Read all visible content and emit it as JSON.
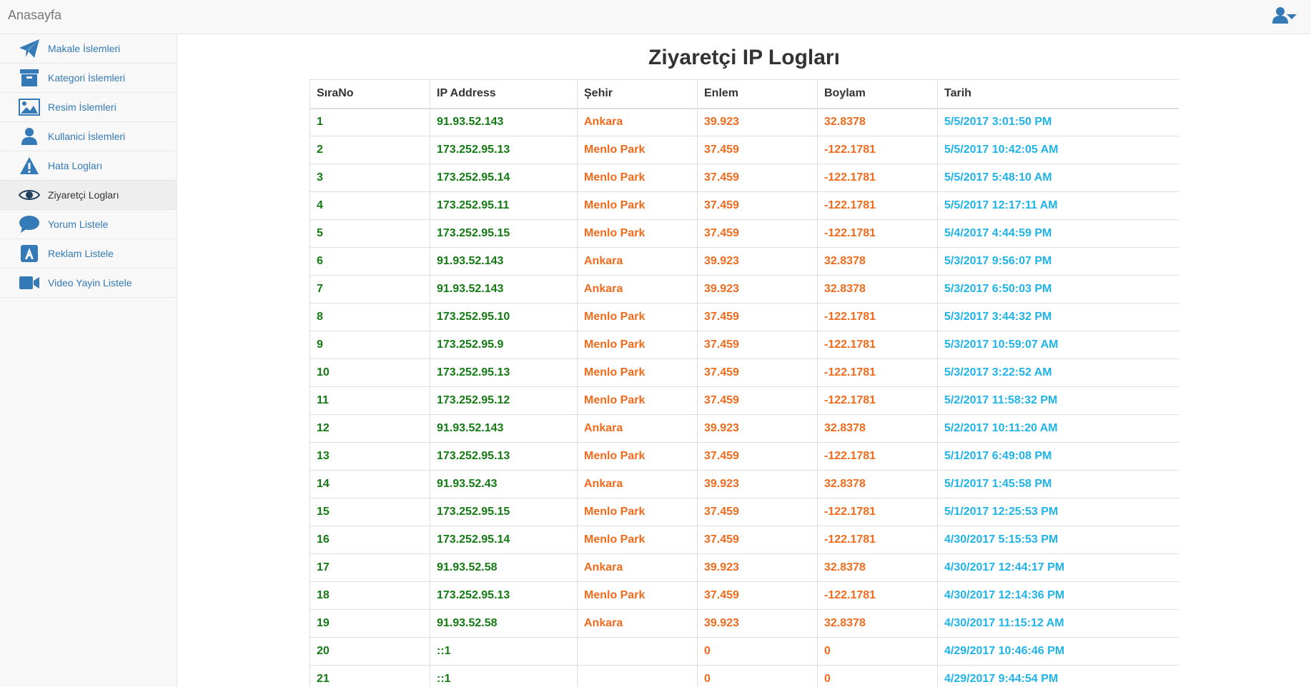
{
  "navbar": {
    "brand": "Anasayfa",
    "user_icon": "user-menu-icon"
  },
  "sidebar": {
    "items": [
      {
        "label": "Makale İslemleri",
        "icon": "paper-plane-icon",
        "active": false
      },
      {
        "label": "Kategori İslemleri",
        "icon": "archive-box-icon",
        "active": false
      },
      {
        "label": "Resim İslemleri",
        "icon": "picture-icon",
        "active": false
      },
      {
        "label": "Kullanici İslemleri",
        "icon": "user-icon",
        "active": false
      },
      {
        "label": "Hata Logları",
        "icon": "warning-icon",
        "active": false
      },
      {
        "label": "Ziyaretçi Logları",
        "icon": "eye-icon",
        "active": true
      },
      {
        "label": "Yorum Listele",
        "icon": "comment-icon",
        "active": false
      },
      {
        "label": "Reklam Listele",
        "icon": "ad-icon",
        "active": false
      },
      {
        "label": "Video Yayin Listele",
        "icon": "video-camera-icon",
        "active": false
      }
    ]
  },
  "page": {
    "title": "Ziyaretçi IP Logları"
  },
  "table": {
    "headers": [
      "SıraNo",
      "IP Address",
      "Şehir",
      "Enlem",
      "Boylam",
      "Tarih"
    ],
    "rows": [
      [
        "1",
        "91.93.52.143",
        "Ankara",
        "39.923",
        "32.8378",
        "5/5/2017 3:01:50 PM"
      ],
      [
        "2",
        "173.252.95.13",
        "Menlo Park",
        "37.459",
        "-122.1781",
        "5/5/2017 10:42:05 AM"
      ],
      [
        "3",
        "173.252.95.14",
        "Menlo Park",
        "37.459",
        "-122.1781",
        "5/5/2017 5:48:10 AM"
      ],
      [
        "4",
        "173.252.95.11",
        "Menlo Park",
        "37.459",
        "-122.1781",
        "5/5/2017 12:17:11 AM"
      ],
      [
        "5",
        "173.252.95.15",
        "Menlo Park",
        "37.459",
        "-122.1781",
        "5/4/2017 4:44:59 PM"
      ],
      [
        "6",
        "91.93.52.143",
        "Ankara",
        "39.923",
        "32.8378",
        "5/3/2017 9:56:07 PM"
      ],
      [
        "7",
        "91.93.52.143",
        "Ankara",
        "39.923",
        "32.8378",
        "5/3/2017 6:50:03 PM"
      ],
      [
        "8",
        "173.252.95.10",
        "Menlo Park",
        "37.459",
        "-122.1781",
        "5/3/2017 3:44:32 PM"
      ],
      [
        "9",
        "173.252.95.9",
        "Menlo Park",
        "37.459",
        "-122.1781",
        "5/3/2017 10:59:07 AM"
      ],
      [
        "10",
        "173.252.95.13",
        "Menlo Park",
        "37.459",
        "-122.1781",
        "5/3/2017 3:22:52 AM"
      ],
      [
        "11",
        "173.252.95.12",
        "Menlo Park",
        "37.459",
        "-122.1781",
        "5/2/2017 11:58:32 PM"
      ],
      [
        "12",
        "91.93.52.143",
        "Ankara",
        "39.923",
        "32.8378",
        "5/2/2017 10:11:20 AM"
      ],
      [
        "13",
        "173.252.95.13",
        "Menlo Park",
        "37.459",
        "-122.1781",
        "5/1/2017 6:49:08 PM"
      ],
      [
        "14",
        "91.93.52.43",
        "Ankara",
        "39.923",
        "32.8378",
        "5/1/2017 1:45:58 PM"
      ],
      [
        "15",
        "173.252.95.15",
        "Menlo Park",
        "37.459",
        "-122.1781",
        "5/1/2017 12:25:53 PM"
      ],
      [
        "16",
        "173.252.95.14",
        "Menlo Park",
        "37.459",
        "-122.1781",
        "4/30/2017 5:15:53 PM"
      ],
      [
        "17",
        "91.93.52.58",
        "Ankara",
        "39.923",
        "32.8378",
        "4/30/2017 12:44:17 PM"
      ],
      [
        "18",
        "173.252.95.13",
        "Menlo Park",
        "37.459",
        "-122.1781",
        "4/30/2017 12:14:36 PM"
      ],
      [
        "19",
        "91.93.52.58",
        "Ankara",
        "39.923",
        "32.8378",
        "4/30/2017 11:15:12 AM"
      ],
      [
        "20",
        "::1",
        "",
        "0",
        "0",
        "4/29/2017 10:46:46 PM"
      ],
      [
        "21",
        "::1",
        "",
        "0",
        "0",
        "4/29/2017 9:44:54 PM"
      ]
    ]
  },
  "colors": {
    "link": "#337ab7",
    "sira_ip": "#137a13",
    "city_coords": "#f06a1c",
    "date": "#1fb3e8"
  }
}
